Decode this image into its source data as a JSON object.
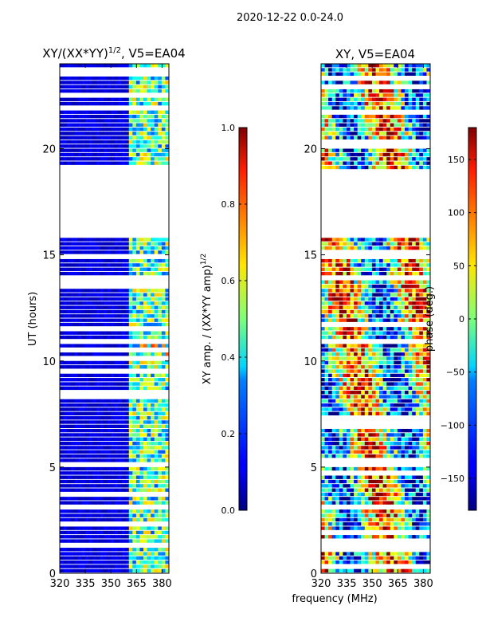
{
  "header": {
    "title": "2020-12-22 0.0-24.0"
  },
  "chart_data": [
    {
      "type": "heatmap",
      "title": "XY/(XX*YY)^(1/2), V5=EA04",
      "title_main": "XY/(XX*YY)",
      "title_sup": "1/2",
      "title_tail": ", V5=EA04",
      "xlabel": "",
      "ylabel": "UT (hours)",
      "xlim": [
        320,
        384
      ],
      "ylim": [
        0,
        24
      ],
      "xticks": [
        {
          "value": 320,
          "label": "320"
        },
        {
          "value": 335,
          "label": "335"
        },
        {
          "value": 350,
          "label": "350"
        },
        {
          "value": 365,
          "label": "365"
        },
        {
          "value": 380,
          "label": "380"
        }
      ],
      "yticks": [
        {
          "value": 0,
          "label": "0"
        },
        {
          "value": 5,
          "label": "5"
        },
        {
          "value": 10,
          "label": "10"
        },
        {
          "value": 15,
          "label": "15"
        },
        {
          "value": 20,
          "label": "20"
        }
      ],
      "colormap": "jet",
      "colorbar": {
        "label_main": "XY amp. / (XX*YY amp)",
        "label_sup": "1/2",
        "range": [
          0,
          1
        ],
        "ticks": [
          {
            "value": 0.0,
            "label": "0.0"
          },
          {
            "value": 0.2,
            "label": "0.2"
          },
          {
            "value": 0.4,
            "label": "0.4"
          },
          {
            "value": 0.6,
            "label": "0.6"
          },
          {
            "value": 0.8,
            "label": "0.8"
          },
          {
            "value": 1.0,
            "label": "1.0"
          }
        ]
      },
      "data_gaps_hours": [
        [
          15.8,
          19.0
        ]
      ],
      "description_values": {
        "low_band_mhz": [
          320,
          361
        ],
        "low_band_value": 0.05,
        "high_band_mhz": [
          361,
          384
        ],
        "high_band_value_range": [
          0.2,
          0.9
        ]
      }
    },
    {
      "type": "heatmap",
      "title": "XY, V5=EA04",
      "xlabel": "frequency (MHz)",
      "ylabel": "",
      "xlim": [
        320,
        384
      ],
      "ylim": [
        0,
        24
      ],
      "xticks": [
        {
          "value": 320,
          "label": "320"
        },
        {
          "value": 335,
          "label": "335"
        },
        {
          "value": 350,
          "label": "350"
        },
        {
          "value": 365,
          "label": "365"
        },
        {
          "value": 380,
          "label": "380"
        }
      ],
      "yticks": [
        {
          "value": 0,
          "label": "0"
        },
        {
          "value": 5,
          "label": "5"
        },
        {
          "value": 10,
          "label": "10"
        },
        {
          "value": 15,
          "label": "15"
        },
        {
          "value": 20,
          "label": "20"
        }
      ],
      "colormap": "jet",
      "colorbar": {
        "label": "phase (deg.)",
        "range": [
          -180,
          180
        ],
        "ticks": [
          {
            "value": -150,
            "label": "−150"
          },
          {
            "value": -100,
            "label": "−100"
          },
          {
            "value": -50,
            "label": "−50"
          },
          {
            "value": 0,
            "label": "0"
          },
          {
            "value": 50,
            "label": "50"
          },
          {
            "value": 100,
            "label": "100"
          },
          {
            "value": 150,
            "label": "150"
          }
        ]
      },
      "data_gaps_hours": [
        [
          15.8,
          19.0
        ]
      ],
      "description_values": {
        "phase_range_deg": [
          -180,
          180
        ]
      }
    }
  ]
}
